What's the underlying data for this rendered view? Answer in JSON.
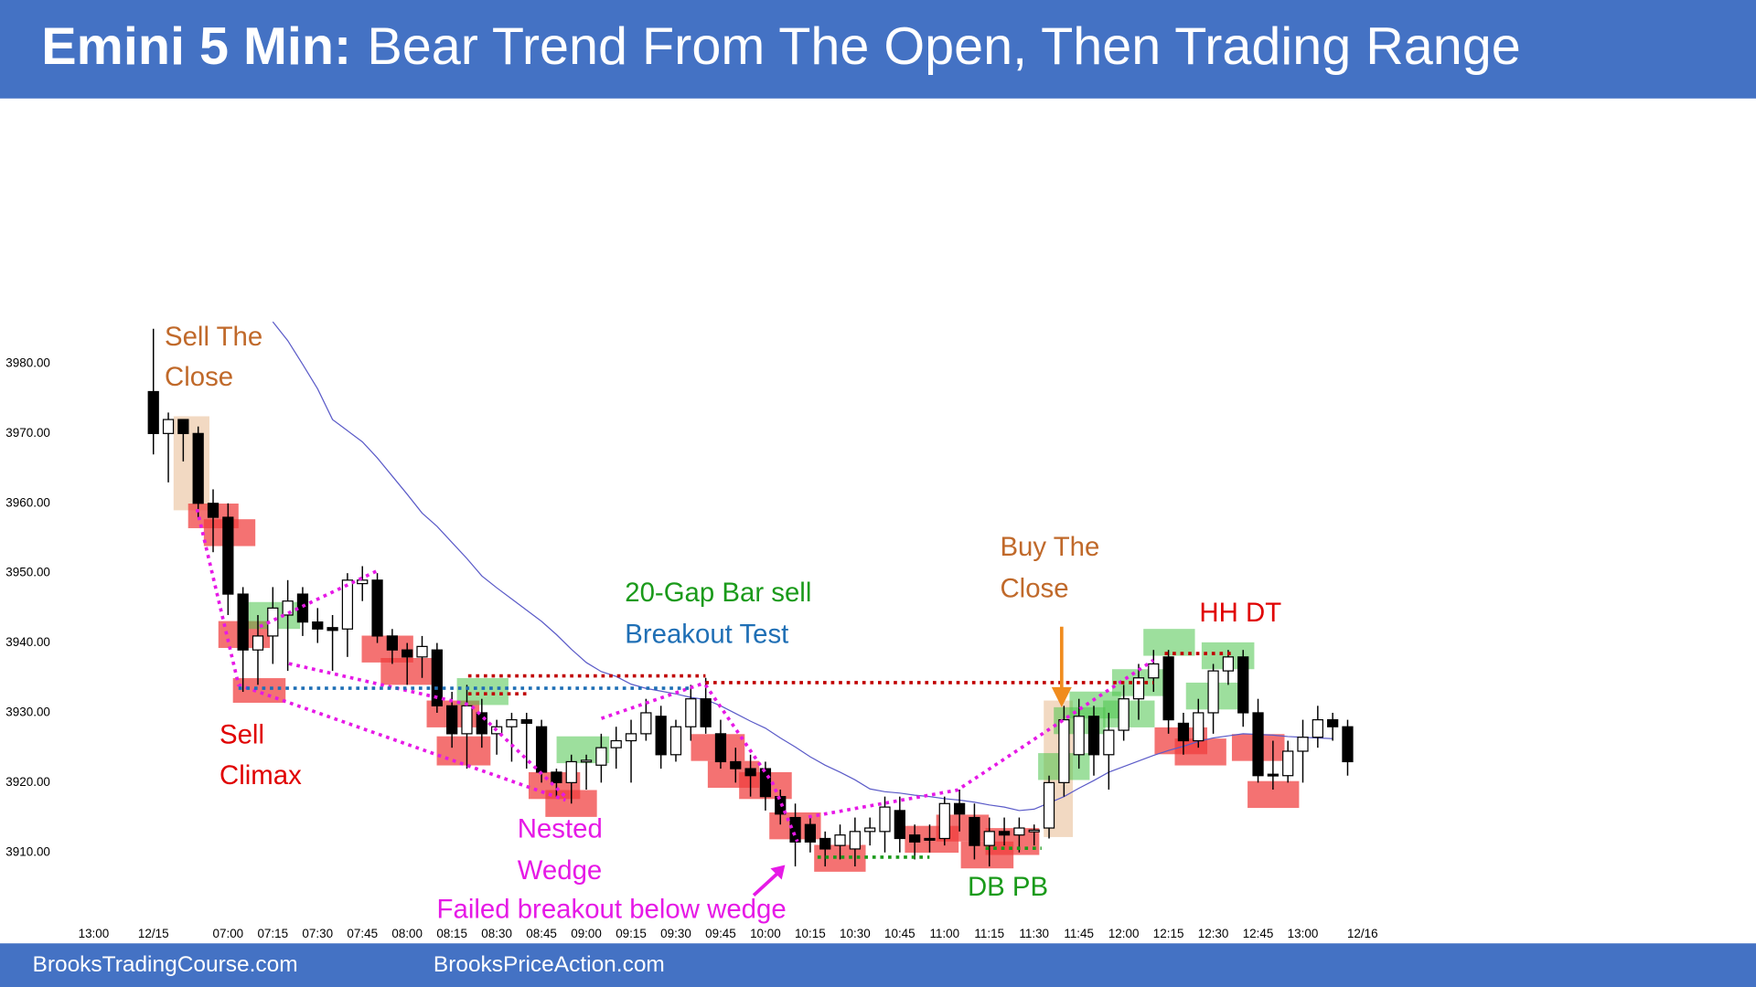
{
  "header": {
    "title_bold": "Emini 5 Min:",
    "title": "Bear Trend From The Open, Then Trading Range"
  },
  "footer": {
    "left": "BrooksTradingCourse.com",
    "right": "BrooksPriceAction.com"
  },
  "chart_data": {
    "type": "candlestick",
    "x": [
      0,
      1,
      2,
      3,
      4,
      5,
      6,
      7,
      8,
      9,
      10,
      11,
      12,
      13,
      14,
      15,
      16,
      17,
      18,
      19,
      20,
      21,
      22,
      23,
      24,
      25,
      26,
      27,
      28,
      29,
      30,
      31,
      32,
      33,
      34,
      35,
      36,
      37,
      38,
      39,
      40,
      41,
      42,
      43,
      44,
      45,
      46,
      47,
      48,
      49,
      50,
      51,
      52,
      53,
      54,
      55,
      56,
      57,
      58,
      59,
      60,
      61,
      62,
      63,
      64,
      65,
      66,
      67,
      68,
      69,
      70,
      71,
      72,
      73,
      74,
      75,
      76,
      77,
      78,
      79,
      80
    ],
    "open": [
      3976,
      3970,
      3972,
      3970,
      3960,
      3958,
      3947,
      3939,
      3941,
      3944,
      3947,
      3943,
      3942.2,
      3942,
      3948.5,
      3949,
      3941,
      3939,
      3938,
      3939,
      3931,
      3927,
      3930,
      3927,
      3928,
      3929,
      3928,
      3921.5,
      3920,
      3923,
      3922.5,
      3925,
      3926,
      3927,
      3929.5,
      3924,
      3928,
      3932,
      3927,
      3923,
      3922,
      3922,
      3918,
      3915,
      3914,
      3912,
      3911,
      3910.5,
      3913,
      3913,
      3916,
      3912.5,
      3912,
      3912,
      3917,
      3915,
      3911,
      3913,
      3912.5,
      3913,
      3913.5,
      3920,
      3924,
      3929.5,
      3924,
      3927.5,
      3932,
      3935,
      3938,
      3928.5,
      3926,
      3930,
      3936,
      3938,
      3930,
      3921.2,
      3921,
      3924.5,
      3926.5,
      3929,
      3928
    ],
    "high": [
      3985,
      3973,
      3972,
      3971,
      3962,
      3960,
      3948,
      3944,
      3948,
      3949,
      3948,
      3945,
      3944,
      3950,
      3951,
      3950,
      3942,
      3940,
      3941,
      3940,
      3933,
      3934,
      3932,
      3929,
      3930,
      3930,
      3929,
      3922,
      3924,
      3924,
      3927,
      3928,
      3929,
      3932,
      3931,
      3929,
      3934,
      3935,
      3929,
      3925,
      3924,
      3923,
      3919,
      3917,
      3915,
      3913,
      3914,
      3915,
      3915,
      3918,
      3918,
      3914,
      3914,
      3918,
      3919,
      3917,
      3915,
      3915,
      3915,
      3914,
      3921,
      3931,
      3932,
      3931,
      3930,
      3934,
      3937,
      3939,
      3939,
      3930,
      3932,
      3937,
      3939,
      3939,
      3932,
      3926,
      3926,
      3929,
      3931,
      3930,
      3929
    ],
    "low": [
      3967,
      3963,
      3966,
      3958,
      3953,
      3944,
      3933,
      3934,
      3937,
      3936,
      3941,
      3940,
      3936,
      3938,
      3946,
      3940,
      3937,
      3934,
      3935,
      3930,
      3925,
      3922,
      3925,
      3924,
      3923,
      3922,
      3920,
      3918,
      3917,
      3919,
      3920,
      3922,
      3920,
      3926,
      3922,
      3923,
      3926,
      3927,
      3922,
      3920,
      3918,
      3916,
      3914,
      3908,
      3910,
      3908,
      3909,
      3908,
      3911,
      3910,
      3910,
      3909,
      3910,
      3911,
      3913,
      3909,
      3908,
      3911,
      3910,
      3911,
      3912,
      3918,
      3922,
      3921,
      3919,
      3926,
      3929,
      3933,
      3927,
      3924,
      3925,
      3927,
      3934,
      3928,
      3920,
      3919,
      3920,
      3920,
      3925,
      3926,
      3921
    ],
    "close": [
      3970,
      3972,
      3970,
      3960,
      3958,
      3947,
      3939,
      3941,
      3945,
      3946,
      3943,
      3942,
      3941.8,
      3949,
      3949,
      3941,
      3939,
      3938,
      3939.5,
      3931,
      3927,
      3931,
      3927,
      3928,
      3929,
      3928.5,
      3921.5,
      3920,
      3923,
      3923.2,
      3925,
      3926,
      3927,
      3930,
      3924,
      3928,
      3932,
      3928,
      3923,
      3922,
      3921,
      3918,
      3915.5,
      3911.5,
      3911.5,
      3910.5,
      3912.5,
      3913,
      3913.5,
      3916.5,
      3912,
      3911.5,
      3911.8,
      3917,
      3915.5,
      3911,
      3913,
      3912.5,
      3913.5,
      3913.2,
      3920,
      3929,
      3929.5,
      3924,
      3927.5,
      3932,
      3935,
      3937,
      3929,
      3926,
      3930,
      3936,
      3938,
      3930,
      3921,
      3921,
      3924.5,
      3926.5,
      3929,
      3928,
      3923
    ],
    "ema": [
      null,
      null,
      null,
      null,
      null,
      null,
      null,
      null,
      3986,
      3983.3,
      3979.9,
      3976.4,
      3972,
      3970.4,
      3968.8,
      3966.5,
      3963.9,
      3961.3,
      3958.6,
      3956.7,
      3954.4,
      3952.1,
      3949.6,
      3947.9,
      3946.3,
      3944.7,
      3943.1,
      3941.2,
      3939.1,
      3937.2,
      3935.9,
      3935.2,
      3934.1,
      3933.5,
      3933.1,
      3932.7,
      3932.2,
      3931.9,
      3931,
      3929.9,
      3928.8,
      3927.8,
      3926.4,
      3925.1,
      3923.7,
      3922.5,
      3921.5,
      3920.4,
      3919.1,
      3918.7,
      3918.5,
      3918.2,
      3918,
      3917.7,
      3917.5,
      3917.2,
      3916.8,
      3916.5,
      3916,
      3916.2,
      3917.1,
      3918,
      3919.2,
      3920.3,
      3921.5,
      3922.3,
      3923.1,
      3923.9,
      3924.6,
      3925.2,
      3925.9,
      3926.4,
      3926.7,
      3927,
      3926.9,
      3926.8,
      3926.6,
      3926.5,
      3926.4,
      3926.3,
      null
    ],
    "ema_color": "#5b5bc8",
    "up_color": "#ffffff",
    "down_color": "#000000",
    "xlim": [
      -6,
      82
    ],
    "xticks": [
      {
        "value": -4,
        "label": "13:00"
      },
      {
        "value": 0,
        "label": "12/15"
      },
      {
        "value": 5,
        "label": "07:00"
      },
      {
        "value": 8,
        "label": "07:15"
      },
      {
        "value": 11,
        "label": "07:30"
      },
      {
        "value": 14,
        "label": "07:45"
      },
      {
        "value": 17,
        "label": "08:00"
      },
      {
        "value": 20,
        "label": "08:15"
      },
      {
        "value": 23,
        "label": "08:30"
      },
      {
        "value": 26,
        "label": "08:45"
      },
      {
        "value": 29,
        "label": "09:00"
      },
      {
        "value": 32,
        "label": "09:15"
      },
      {
        "value": 35,
        "label": "09:30"
      },
      {
        "value": 38,
        "label": "09:45"
      },
      {
        "value": 41,
        "label": "10:00"
      },
      {
        "value": 44,
        "label": "10:15"
      },
      {
        "value": 47,
        "label": "10:30"
      },
      {
        "value": 50,
        "label": "10:45"
      },
      {
        "value": 53,
        "label": "11:00"
      },
      {
        "value": 56,
        "label": "11:15"
      },
      {
        "value": 59,
        "label": "11:30"
      },
      {
        "value": 62,
        "label": "11:45"
      },
      {
        "value": 65,
        "label": "12:00"
      },
      {
        "value": 68,
        "label": "12:15"
      },
      {
        "value": 71,
        "label": "12:30"
      },
      {
        "value": 74,
        "label": "12:45"
      },
      {
        "value": 77,
        "label": "13:00"
      },
      {
        "value": 81,
        "label": "12/16"
      }
    ],
    "ylim": [
      3899,
      3987
    ],
    "yticks": [
      {
        "value": 3910,
        "label": "3910.00"
      },
      {
        "value": 3920,
        "label": "3920.00"
      },
      {
        "value": 3930,
        "label": "3930.00"
      },
      {
        "value": 3940,
        "label": "3940.00"
      },
      {
        "value": 3950,
        "label": "3950.00"
      },
      {
        "value": 3960,
        "label": "3960.00"
      },
      {
        "value": 3970,
        "label": "3970.00"
      },
      {
        "value": 3980,
        "label": "3980.00"
      }
    ],
    "grid": false,
    "annotations": [
      [
        "Sell The",
        "Close"
      ],
      [
        "Sell",
        "Climax"
      ],
      [
        "Nested",
        "Wedge"
      ],
      [
        "Failed breakout below wedge"
      ],
      [
        "20-Gap Bar sell"
      ],
      [
        "Breakout Test"
      ],
      [
        "Buy The",
        "Close"
      ],
      [
        "HH DT"
      ],
      [
        "DB PB"
      ]
    ]
  }
}
